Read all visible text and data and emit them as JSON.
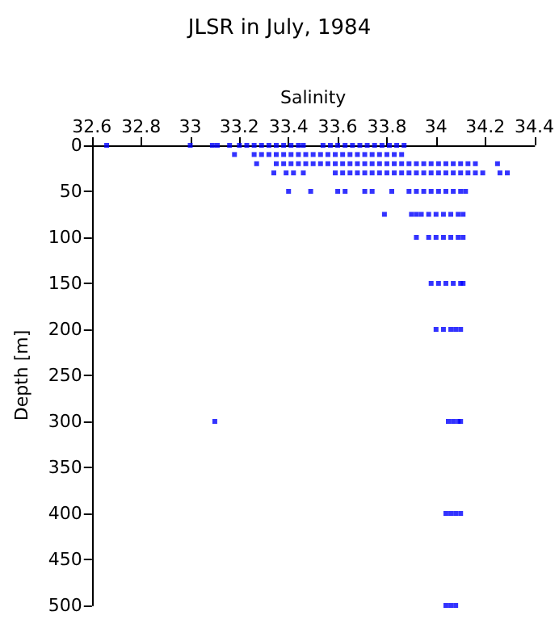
{
  "chart_data": {
    "type": "scatter",
    "title": "JLSR in July, 1984",
    "xlabel": "Salinity",
    "ylabel": "Depth [m]",
    "xlim": [
      32.6,
      34.4
    ],
    "xticks": [
      32.6,
      32.8,
      33,
      33.2,
      33.4,
      33.6,
      33.8,
      34,
      34.2,
      34.4
    ],
    "ylim": [
      500,
      0
    ],
    "yticks": [
      0,
      50,
      100,
      150,
      200,
      250,
      300,
      350,
      400,
      450,
      500
    ],
    "grid": false,
    "marker": "square",
    "color": "#0000ff",
    "x": [
      32.66,
      33.0,
      33.09,
      33.11,
      33.16,
      33.2,
      33.23,
      33.26,
      33.29,
      33.32,
      33.35,
      33.38,
      33.41,
      33.44,
      33.46,
      33.54,
      33.57,
      33.6,
      33.63,
      33.66,
      33.69,
      33.72,
      33.75,
      33.78,
      33.81,
      33.84,
      33.87,
      33.18,
      33.26,
      33.29,
      33.32,
      33.35,
      33.38,
      33.41,
      33.44,
      33.47,
      33.5,
      33.53,
      33.56,
      33.59,
      33.62,
      33.65,
      33.68,
      33.71,
      33.74,
      33.77,
      33.8,
      33.83,
      33.86,
      33.27,
      33.35,
      33.38,
      33.41,
      33.44,
      33.47,
      33.5,
      33.53,
      33.56,
      33.59,
      33.62,
      33.65,
      33.68,
      33.71,
      33.74,
      33.77,
      33.8,
      33.83,
      33.86,
      33.89,
      33.92,
      33.95,
      33.98,
      34.01,
      34.04,
      34.07,
      34.1,
      34.13,
      34.16,
      34.25,
      33.34,
      33.39,
      33.42,
      33.46,
      33.59,
      33.62,
      33.65,
      33.68,
      33.71,
      33.74,
      33.77,
      33.8,
      33.83,
      33.86,
      33.89,
      33.92,
      33.95,
      33.98,
      34.01,
      34.04,
      34.07,
      34.1,
      34.13,
      34.16,
      34.19,
      34.26,
      34.29,
      33.4,
      33.49,
      33.6,
      33.63,
      33.71,
      33.74,
      33.82,
      33.89,
      33.92,
      33.95,
      33.98,
      34.01,
      34.04,
      34.07,
      34.1,
      34.12,
      33.79,
      33.9,
      33.92,
      33.94,
      33.97,
      34.0,
      34.03,
      34.06,
      34.09,
      34.11,
      33.92,
      33.97,
      34.0,
      34.03,
      34.06,
      34.09,
      34.11,
      33.98,
      34.01,
      34.04,
      34.07,
      34.1,
      34.11,
      34.0,
      34.03,
      34.06,
      34.08,
      34.1,
      33.1,
      34.05,
      34.07,
      34.09,
      34.1,
      34.04,
      34.06,
      34.08,
      34.1,
      34.04,
      34.06,
      34.08
    ],
    "values": [
      0,
      0,
      0,
      0,
      0,
      0,
      0,
      0,
      0,
      0,
      0,
      0,
      0,
      0,
      0,
      0,
      0,
      0,
      0,
      0,
      0,
      0,
      0,
      0,
      0,
      0,
      0,
      10,
      10,
      10,
      10,
      10,
      10,
      10,
      10,
      10,
      10,
      10,
      10,
      10,
      10,
      10,
      10,
      10,
      10,
      10,
      10,
      10,
      10,
      20,
      20,
      20,
      20,
      20,
      20,
      20,
      20,
      20,
      20,
      20,
      20,
      20,
      20,
      20,
      20,
      20,
      20,
      20,
      20,
      20,
      20,
      20,
      20,
      20,
      20,
      20,
      20,
      20,
      20,
      30,
      30,
      30,
      30,
      30,
      30,
      30,
      30,
      30,
      30,
      30,
      30,
      30,
      30,
      30,
      30,
      30,
      30,
      30,
      30,
      30,
      30,
      30,
      30,
      30,
      30,
      30,
      50,
      50,
      50,
      50,
      50,
      50,
      50,
      50,
      50,
      50,
      50,
      50,
      50,
      50,
      50,
      50,
      75,
      75,
      75,
      75,
      75,
      75,
      75,
      75,
      75,
      75,
      100,
      100,
      100,
      100,
      100,
      100,
      100,
      150,
      150,
      150,
      150,
      150,
      150,
      200,
      200,
      200,
      200,
      200,
      300,
      300,
      300,
      300,
      300,
      400,
      400,
      400,
      400,
      500,
      500,
      500
    ]
  }
}
